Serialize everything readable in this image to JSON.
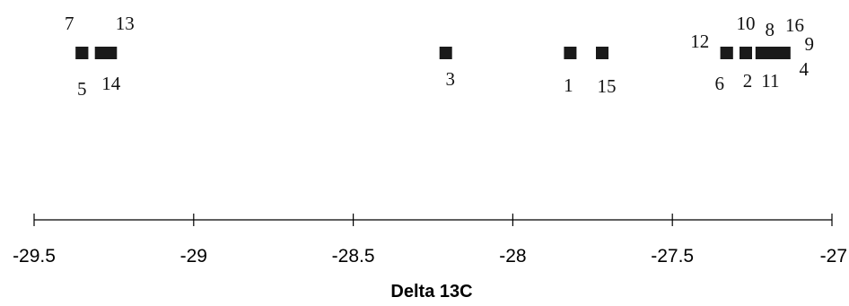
{
  "chart_data": {
    "type": "scatter",
    "xlabel": "Delta 13C",
    "xlim": [
      -29.5,
      -27
    ],
    "xticks": [
      "-29.5",
      "-29",
      "-28.5",
      "-28",
      "-27.5",
      "-27"
    ],
    "grid": false,
    "legend": "none",
    "marker": "square",
    "marker_color": "#1a1a1a",
    "points": [
      {
        "label": "1",
        "x": -27.82
      },
      {
        "label": "2",
        "x": -27.27
      },
      {
        "label": "3",
        "x": -28.21
      },
      {
        "label": "4",
        "x": -27.15
      },
      {
        "label": "5",
        "x": -29.35
      },
      {
        "label": "6",
        "x": -27.33
      },
      {
        "label": "7",
        "x": -29.35
      },
      {
        "label": "8",
        "x": -27.22
      },
      {
        "label": "9",
        "x": -27.15
      },
      {
        "label": "10",
        "x": -27.27
      },
      {
        "label": "11",
        "x": -27.19
      },
      {
        "label": "12",
        "x": -27.33
      },
      {
        "label": "13",
        "x": -29.26
      },
      {
        "label": "14",
        "x": -29.29
      },
      {
        "label": "15",
        "x": -27.72
      },
      {
        "label": "16",
        "x": -27.17
      }
    ]
  }
}
